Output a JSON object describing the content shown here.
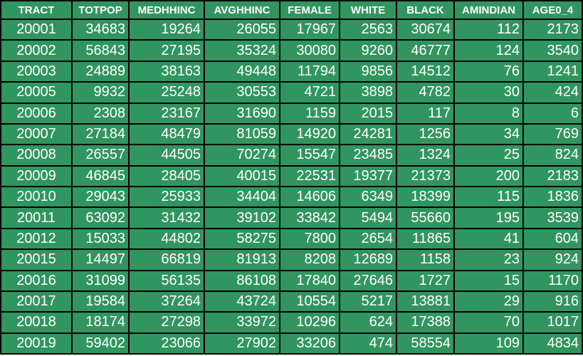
{
  "table": {
    "headers": [
      "TRACT",
      "TOTPOP",
      "MEDHHINC",
      "AVGHHINC",
      "FEMALE",
      "WHITE",
      "BLACK",
      "AMINDIAN",
      "AGE0_4"
    ],
    "rows": [
      [
        "20001",
        "34683",
        "19264",
        "26055",
        "17967",
        "2563",
        "30674",
        "112",
        "2173"
      ],
      [
        "20002",
        "56843",
        "27195",
        "35324",
        "30080",
        "9260",
        "46777",
        "124",
        "3540"
      ],
      [
        "20003",
        "24889",
        "38163",
        "49448",
        "11794",
        "9856",
        "14512",
        "76",
        "1241"
      ],
      [
        "20005",
        "9932",
        "25248",
        "30553",
        "4721",
        "3898",
        "4782",
        "30",
        "424"
      ],
      [
        "20006",
        "2308",
        "23167",
        "31690",
        "1159",
        "2015",
        "117",
        "8",
        "6"
      ],
      [
        "20007",
        "27184",
        "48479",
        "81059",
        "14920",
        "24281",
        "1256",
        "34",
        "769"
      ],
      [
        "20008",
        "26557",
        "44505",
        "70274",
        "15547",
        "23485",
        "1324",
        "25",
        "824"
      ],
      [
        "20009",
        "46845",
        "28405",
        "40015",
        "22531",
        "19377",
        "21373",
        "200",
        "2183"
      ],
      [
        "20010",
        "29043",
        "25933",
        "34404",
        "14606",
        "6349",
        "18399",
        "115",
        "1836"
      ],
      [
        "20011",
        "63092",
        "31432",
        "39102",
        "33842",
        "5494",
        "55660",
        "195",
        "3539"
      ],
      [
        "20012",
        "15033",
        "44802",
        "58275",
        "7800",
        "2654",
        "11865",
        "41",
        "604"
      ],
      [
        "20015",
        "14497",
        "66819",
        "81913",
        "8208",
        "12689",
        "1158",
        "23",
        "924"
      ],
      [
        "20016",
        "31099",
        "56135",
        "86108",
        "17840",
        "27646",
        "1727",
        "15",
        "1170"
      ],
      [
        "20017",
        "19584",
        "37264",
        "43724",
        "10554",
        "5217",
        "13881",
        "29",
        "916"
      ],
      [
        "20018",
        "18174",
        "27298",
        "33972",
        "10296",
        "624",
        "17388",
        "70",
        "1017"
      ],
      [
        "20019",
        "59402",
        "23066",
        "27902",
        "33206",
        "474",
        "58554",
        "109",
        "4834"
      ]
    ]
  },
  "colors": {
    "cell_background": "#31955f",
    "border": "#000000",
    "text": "#ffffff"
  }
}
